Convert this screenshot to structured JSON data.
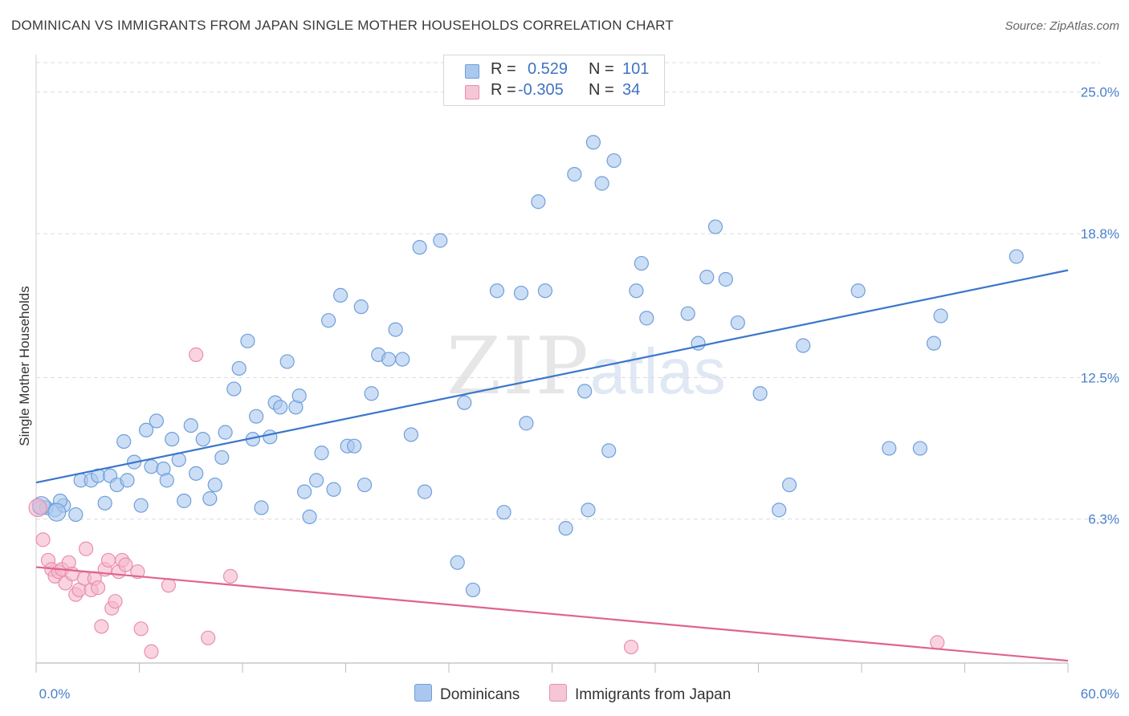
{
  "header": {
    "title": "DOMINICAN VS IMMIGRANTS FROM JAPAN SINGLE MOTHER HOUSEHOLDS CORRELATION CHART",
    "source": "Source: ZipAtlas.com"
  },
  "watermark": {
    "zip": "ZIP",
    "atlas": "atlas"
  },
  "legend": {
    "series1": {
      "r_label": "R =",
      "r_value": "0.529",
      "n_label": "N =",
      "n_value": "101"
    },
    "series2": {
      "r_label": "R =",
      "r_value": "-0.305",
      "n_label": "N =",
      "n_value": "34"
    }
  },
  "bottom_legend": {
    "dominicans": "Dominicans",
    "japan": "Immigrants from Japan"
  },
  "colors": {
    "blue_fill": "#aac8ee",
    "blue_stroke": "#6f9fda",
    "blue_line": "#3b76cc",
    "pink_fill": "#f5b8cb",
    "pink_stroke": "#e98fad",
    "pink_line": "#e0638e",
    "axis_text": "#4a7fc9",
    "grid": "#dcdcdc"
  },
  "chart_data": {
    "type": "scatter",
    "title": "DOMINICAN VS IMMIGRANTS FROM JAPAN SINGLE MOTHER HOUSEHOLDS CORRELATION CHART",
    "xlabel": "",
    "ylabel": "Single Mother Households",
    "xlim": [
      0,
      60
    ],
    "ylim": [
      0,
      26.5
    ],
    "x_tick_labels": [
      "0.0%",
      "60.0%"
    ],
    "y_ticks": [
      6.3,
      12.5,
      18.8,
      25.0
    ],
    "y_tick_labels": [
      "6.3%",
      "12.5%",
      "18.8%",
      "25.0%"
    ],
    "grid": true,
    "legend_position": "top-center",
    "series": [
      {
        "name": "Dominicans",
        "r": 0.529,
        "n": 101,
        "trend": {
          "x": [
            0,
            60
          ],
          "y": [
            7.9,
            17.2
          ]
        },
        "points": [
          [
            0.2,
            6.8
          ],
          [
            0.6,
            6.8
          ],
          [
            1.1,
            6.7
          ],
          [
            1.6,
            6.9
          ],
          [
            1.4,
            7.1
          ],
          [
            2.3,
            6.5
          ],
          [
            2.6,
            8.0
          ],
          [
            3.2,
            8.0
          ],
          [
            3.6,
            8.2
          ],
          [
            4.0,
            7.0
          ],
          [
            4.3,
            8.2
          ],
          [
            4.7,
            7.8
          ],
          [
            5.1,
            9.7
          ],
          [
            5.3,
            8.0
          ],
          [
            5.7,
            8.8
          ],
          [
            6.1,
            6.9
          ],
          [
            6.4,
            10.2
          ],
          [
            6.7,
            8.6
          ],
          [
            7.0,
            10.6
          ],
          [
            7.4,
            8.5
          ],
          [
            7.6,
            8.0
          ],
          [
            7.9,
            9.8
          ],
          [
            8.3,
            8.9
          ],
          [
            8.6,
            7.1
          ],
          [
            9.0,
            10.4
          ],
          [
            9.3,
            8.3
          ],
          [
            9.7,
            9.8
          ],
          [
            10.1,
            7.2
          ],
          [
            10.4,
            7.8
          ],
          [
            10.8,
            9.0
          ],
          [
            11.0,
            10.1
          ],
          [
            11.5,
            12.0
          ],
          [
            11.8,
            12.9
          ],
          [
            12.3,
            14.1
          ],
          [
            12.6,
            9.8
          ],
          [
            12.8,
            10.8
          ],
          [
            13.1,
            6.8
          ],
          [
            13.6,
            9.9
          ],
          [
            13.9,
            11.4
          ],
          [
            14.2,
            11.2
          ],
          [
            14.6,
            13.2
          ],
          [
            15.1,
            11.2
          ],
          [
            15.3,
            11.7
          ],
          [
            15.6,
            7.5
          ],
          [
            15.9,
            6.4
          ],
          [
            16.3,
            8.0
          ],
          [
            16.6,
            9.2
          ],
          [
            17.0,
            15.0
          ],
          [
            17.3,
            7.6
          ],
          [
            17.7,
            16.1
          ],
          [
            18.1,
            9.5
          ],
          [
            18.5,
            9.5
          ],
          [
            18.9,
            15.6
          ],
          [
            19.1,
            7.8
          ],
          [
            19.5,
            11.8
          ],
          [
            19.9,
            13.5
          ],
          [
            20.5,
            13.3
          ],
          [
            20.9,
            14.6
          ],
          [
            21.3,
            13.3
          ],
          [
            21.8,
            10.0
          ],
          [
            22.3,
            18.2
          ],
          [
            22.6,
            7.5
          ],
          [
            23.5,
            18.5
          ],
          [
            24.5,
            4.4
          ],
          [
            24.9,
            11.4
          ],
          [
            25.4,
            3.2
          ],
          [
            26.8,
            16.3
          ],
          [
            27.2,
            6.6
          ],
          [
            28.2,
            16.2
          ],
          [
            28.5,
            10.5
          ],
          [
            29.2,
            20.2
          ],
          [
            29.6,
            16.3
          ],
          [
            30.8,
            5.9
          ],
          [
            31.3,
            21.4
          ],
          [
            31.9,
            11.9
          ],
          [
            32.1,
            6.7
          ],
          [
            32.4,
            22.8
          ],
          [
            32.9,
            21.0
          ],
          [
            33.3,
            9.3
          ],
          [
            33.6,
            22.0
          ],
          [
            34.9,
            16.3
          ],
          [
            35.2,
            17.5
          ],
          [
            35.5,
            15.1
          ],
          [
            37.9,
            15.3
          ],
          [
            38.5,
            14.0
          ],
          [
            39.0,
            16.9
          ],
          [
            39.5,
            19.1
          ],
          [
            40.1,
            16.8
          ],
          [
            40.8,
            14.9
          ],
          [
            42.1,
            11.8
          ],
          [
            43.2,
            6.7
          ],
          [
            43.8,
            7.8
          ],
          [
            44.6,
            13.9
          ],
          [
            47.8,
            16.3
          ],
          [
            49.6,
            9.4
          ],
          [
            51.4,
            9.4
          ],
          [
            52.2,
            14.0
          ],
          [
            52.6,
            15.2
          ],
          [
            57.0,
            17.8
          ],
          [
            0.3,
            6.9
          ],
          [
            1.2,
            6.6
          ]
        ]
      },
      {
        "name": "Immigrants from Japan",
        "r": -0.305,
        "n": 34,
        "trend": {
          "x": [
            0,
            60
          ],
          "y": [
            4.2,
            0.1
          ]
        },
        "points": [
          [
            0.1,
            6.8
          ],
          [
            0.4,
            5.4
          ],
          [
            0.7,
            4.5
          ],
          [
            0.9,
            4.1
          ],
          [
            1.1,
            3.8
          ],
          [
            1.3,
            4.0
          ],
          [
            1.5,
            4.1
          ],
          [
            1.7,
            3.5
          ],
          [
            1.9,
            4.4
          ],
          [
            2.1,
            3.9
          ],
          [
            2.3,
            3.0
          ],
          [
            2.5,
            3.2
          ],
          [
            2.8,
            3.7
          ],
          [
            2.9,
            5.0
          ],
          [
            3.2,
            3.2
          ],
          [
            3.4,
            3.7
          ],
          [
            3.6,
            3.3
          ],
          [
            3.8,
            1.6
          ],
          [
            4.0,
            4.1
          ],
          [
            4.2,
            4.5
          ],
          [
            4.4,
            2.4
          ],
          [
            4.6,
            2.7
          ],
          [
            4.8,
            4.0
          ],
          [
            5.0,
            4.5
          ],
          [
            5.2,
            4.3
          ],
          [
            5.9,
            4.0
          ],
          [
            6.1,
            1.5
          ],
          [
            6.7,
            0.5
          ],
          [
            7.7,
            3.4
          ],
          [
            9.3,
            13.5
          ],
          [
            10.0,
            1.1
          ],
          [
            11.3,
            3.8
          ],
          [
            34.6,
            0.7
          ],
          [
            52.4,
            0.9
          ]
        ]
      }
    ]
  }
}
